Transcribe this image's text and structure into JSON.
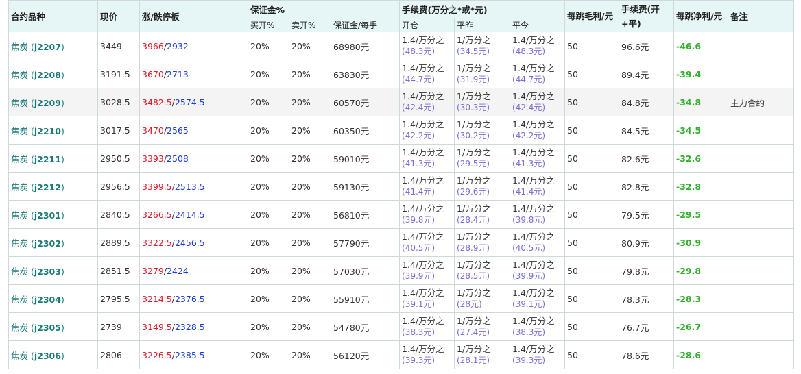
{
  "header": {
    "contract": "合约品种",
    "price": "现价",
    "limit": "涨/跌停板",
    "margin": "保证金%",
    "margin_buy": "买开%",
    "margin_sell": "卖开%",
    "margin_per": "保证金/每手",
    "fee": "手续费(万分之*或*元)",
    "fee_open": "开仓",
    "fee_close_yest": "平昨",
    "fee_close_today": "平今",
    "tick_profit": "每跳毛利/元",
    "fee_total": "手续费(开+平)",
    "net_profit": "每跳净利/元",
    "remark": "备注"
  },
  "rows": [
    {
      "name": "焦炭",
      "code": "j2207",
      "price": "3449",
      "up": "3966",
      "down": "2932",
      "buy": "20%",
      "sell": "20%",
      "margin": "68980元",
      "open": "1.4/万分之",
      "open_sub": "(48.3元)",
      "yest": "1/万分之",
      "yest_sub": "(34.5元)",
      "today": "1.4/万分之",
      "today_sub": "(48.3元)",
      "tick": "50",
      "fee": "96.6元",
      "net": "-46.6",
      "remark": ""
    },
    {
      "name": "焦炭",
      "code": "j2208",
      "price": "3191.5",
      "up": "3670",
      "down": "2713",
      "buy": "20%",
      "sell": "20%",
      "margin": "63830元",
      "open": "1.4/万分之",
      "open_sub": "(44.7元)",
      "yest": "1/万分之",
      "yest_sub": "(31.9元)",
      "today": "1.4/万分之",
      "today_sub": "(44.7元)",
      "tick": "50",
      "fee": "89.4元",
      "net": "-39.4",
      "remark": ""
    },
    {
      "name": "焦炭",
      "code": "j2209",
      "price": "3028.5",
      "up": "3482.5",
      "down": "2574.5",
      "buy": "20%",
      "sell": "20%",
      "margin": "60570元",
      "open": "1.4/万分之",
      "open_sub": "(42.4元)",
      "yest": "1/万分之",
      "yest_sub": "(30.3元)",
      "today": "1.4/万分之",
      "today_sub": "(42.4元)",
      "tick": "50",
      "fee": "84.8元",
      "net": "-34.8",
      "remark": "主力合约"
    },
    {
      "name": "焦炭",
      "code": "j2210",
      "price": "3017.5",
      "up": "3470",
      "down": "2565",
      "buy": "20%",
      "sell": "20%",
      "margin": "60350元",
      "open": "1.4/万分之",
      "open_sub": "(42.2元)",
      "yest": "1/万分之",
      "yest_sub": "(30.2元)",
      "today": "1.4/万分之",
      "today_sub": "(42.2元)",
      "tick": "50",
      "fee": "84.5元",
      "net": "-34.5",
      "remark": ""
    },
    {
      "name": "焦炭",
      "code": "j2211",
      "price": "2950.5",
      "up": "3393",
      "down": "2508",
      "buy": "20%",
      "sell": "20%",
      "margin": "59010元",
      "open": "1.4/万分之",
      "open_sub": "(41.3元)",
      "yest": "1/万分之",
      "yest_sub": "(29.5元)",
      "today": "1.4/万分之",
      "today_sub": "(41.3元)",
      "tick": "50",
      "fee": "82.6元",
      "net": "-32.6",
      "remark": ""
    },
    {
      "name": "焦炭",
      "code": "j2212",
      "price": "2956.5",
      "up": "3399.5",
      "down": "2513.5",
      "buy": "20%",
      "sell": "20%",
      "margin": "59130元",
      "open": "1.4/万分之",
      "open_sub": "(41.4元)",
      "yest": "1/万分之",
      "yest_sub": "(29.6元)",
      "today": "1.4/万分之",
      "today_sub": "(41.4元)",
      "tick": "50",
      "fee": "82.8元",
      "net": "-32.8",
      "remark": ""
    },
    {
      "name": "焦炭",
      "code": "j2301",
      "price": "2840.5",
      "up": "3266.5",
      "down": "2414.5",
      "buy": "20%",
      "sell": "20%",
      "margin": "56810元",
      "open": "1.4/万分之",
      "open_sub": "(39.8元)",
      "yest": "1/万分之",
      "yest_sub": "(28.4元)",
      "today": "1.4/万分之",
      "today_sub": "(39.8元)",
      "tick": "50",
      "fee": "79.5元",
      "net": "-29.5",
      "remark": ""
    },
    {
      "name": "焦炭",
      "code": "j2302",
      "price": "2889.5",
      "up": "3322.5",
      "down": "2456.5",
      "buy": "20%",
      "sell": "20%",
      "margin": "57790元",
      "open": "1.4/万分之",
      "open_sub": "(40.5元)",
      "yest": "1/万分之",
      "yest_sub": "(28.9元)",
      "today": "1.4/万分之",
      "today_sub": "(40.5元)",
      "tick": "50",
      "fee": "80.9元",
      "net": "-30.9",
      "remark": ""
    },
    {
      "name": "焦炭",
      "code": "j2303",
      "price": "2851.5",
      "up": "3279",
      "down": "2424",
      "buy": "20%",
      "sell": "20%",
      "margin": "57030元",
      "open": "1.4/万分之",
      "open_sub": "(39.9元)",
      "yest": "1/万分之",
      "yest_sub": "(28.5元)",
      "today": "1.4/万分之",
      "today_sub": "(39.9元)",
      "tick": "50",
      "fee": "79.8元",
      "net": "-29.8",
      "remark": ""
    },
    {
      "name": "焦炭",
      "code": "j2304",
      "price": "2795.5",
      "up": "3214.5",
      "down": "2376.5",
      "buy": "20%",
      "sell": "20%",
      "margin": "55910元",
      "open": "1.4/万分之",
      "open_sub": "(39.1元)",
      "yest": "1/万分之",
      "yest_sub": "(28元)",
      "today": "1.4/万分之",
      "today_sub": "(39.1元)",
      "tick": "50",
      "fee": "78.3元",
      "net": "-28.3",
      "remark": ""
    },
    {
      "name": "焦炭",
      "code": "j2305",
      "price": "2739",
      "up": "3149.5",
      "down": "2328.5",
      "buy": "20%",
      "sell": "20%",
      "margin": "54780元",
      "open": "1.4/万分之",
      "open_sub": "(38.3元)",
      "yest": "1/万分之",
      "yest_sub": "(27.4元)",
      "today": "1.4/万分之",
      "today_sub": "(38.3元)",
      "tick": "50",
      "fee": "76.7元",
      "net": "-26.7",
      "remark": ""
    },
    {
      "name": "焦炭",
      "code": "j2306",
      "price": "2806",
      "up": "3226.5",
      "down": "2385.5",
      "buy": "20%",
      "sell": "20%",
      "margin": "56120元",
      "open": "1.4/万分之",
      "open_sub": "(39.3元)",
      "yest": "1/万分之",
      "yest_sub": "(28.1元)",
      "today": "1.4/万分之",
      "today_sub": "(39.3元)",
      "tick": "50",
      "fee": "78.6元",
      "net": "-28.6",
      "remark": ""
    }
  ]
}
